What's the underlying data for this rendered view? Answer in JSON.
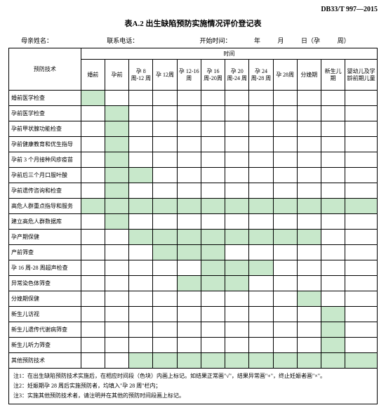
{
  "doc_code": "DB33/T 997—2015",
  "title": "表A.2  出生缺陷预防实施情况评价登记表",
  "meta": {
    "mother_name_label": "母亲姓名：",
    "phone_label": "联系电话：",
    "start_label": "开始时间：",
    "year": "年",
    "month": "月",
    "day": "日（孕",
    "week": "周）"
  },
  "headers": {
    "tech": "预防技术",
    "time": "时间",
    "cols": [
      "婚前",
      "孕前",
      "孕 8 周-12 周",
      "孕 12周",
      "孕 12-16周",
      "孕 16周-20周",
      "孕 20周-24 周",
      "孕 24周-28 周",
      "孕 28周",
      "分娩期",
      "新生儿期",
      "婴幼儿及学龄前期儿童"
    ]
  },
  "rows": [
    {
      "label": "婚前医学检查",
      "hl": [
        0
      ]
    },
    {
      "label": "孕前医学检查",
      "hl": [
        1
      ]
    },
    {
      "label": "孕前甲状腺功能检查",
      "hl": [
        1
      ]
    },
    {
      "label": "孕前健康教育和优生指导",
      "hl": [
        1
      ]
    },
    {
      "label": "孕前 3 个月接种风疹疫苗",
      "hl": [
        1
      ]
    },
    {
      "label": "孕前后三个月口服叶酸",
      "hl": [
        1,
        2
      ]
    },
    {
      "label": "孕前遗传咨询和检查",
      "hl": [
        1
      ]
    },
    {
      "label": "高危人群重点指导和服务",
      "hl": [
        0,
        1,
        2,
        3,
        4,
        5,
        6,
        7,
        8,
        9,
        10,
        11
      ]
    },
    {
      "label": "建立高危人群数据库",
      "hl": [
        1
      ]
    },
    {
      "label": "孕产期保健",
      "hl": [
        2,
        3,
        4,
        5,
        6,
        7,
        8,
        9
      ]
    },
    {
      "label": "产前筛查",
      "hl": [
        3,
        4,
        5
      ]
    },
    {
      "label": "孕 16 周-28 周超声检查",
      "hl": [
        5,
        6,
        7
      ]
    },
    {
      "label": "异常染色体筛查",
      "hl": [
        4,
        5,
        6
      ]
    },
    {
      "label": "分娩期保健",
      "hl": [
        9
      ]
    },
    {
      "label": "新生儿访视",
      "hl": [
        10
      ]
    },
    {
      "label": "新生儿遗传代谢病筛查",
      "hl": [
        10
      ]
    },
    {
      "label": "新生儿听力筛查",
      "hl": [
        10
      ]
    },
    {
      "label": "其他预防技术",
      "hl": [
        2,
        3,
        4,
        5,
        6,
        7,
        8,
        9,
        10,
        11
      ]
    }
  ],
  "notes": [
    "注1：在出生缺陷预防技术实施后，在相应时间段（色块）内画上标记。如结果正常画\"√\"，结果异常画\"+\"，终止妊娠者画\"×\"。",
    "注2：妊娠期孕 28 周后实施预防者，均填入\"孕 28 周\"栏内；",
    "注3：实施其他预防技术者，请注明并在其他的预防时间段画上标记。"
  ]
}
